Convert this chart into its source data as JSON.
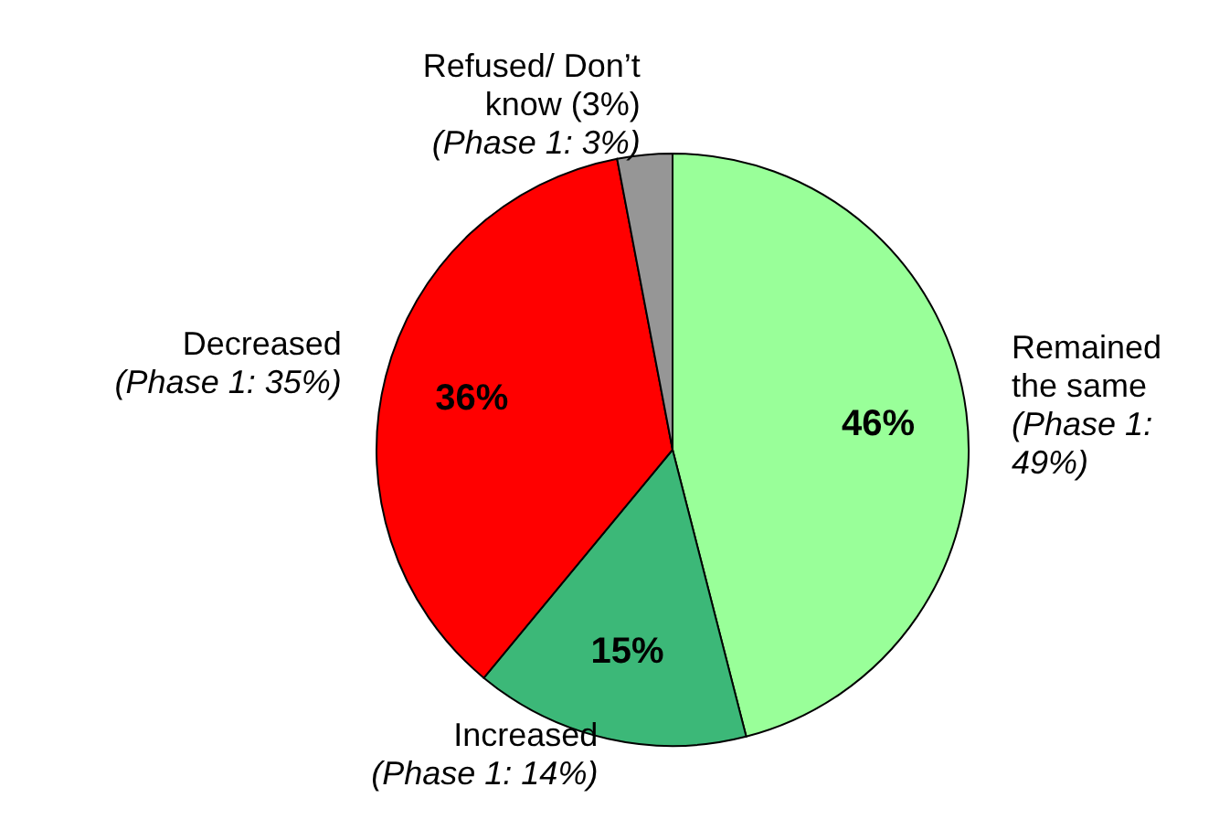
{
  "chart_data": {
    "type": "pie",
    "categories": [
      "Remained the same",
      "Increased",
      "Decreased",
      "Refused/ Don’t know (3%)"
    ],
    "values": [
      46,
      15,
      36,
      3
    ],
    "colors": [
      "#99ff99",
      "#3cb878",
      "#ff0000",
      "#969696"
    ],
    "value_labels": [
      "46%",
      "15%",
      "36%",
      null
    ],
    "annotations": [
      "(Phase 1: 49%)",
      "(Phase 1: 14%)",
      "(Phase 1: 35%)",
      "(Phase 1: 3%)"
    ]
  }
}
